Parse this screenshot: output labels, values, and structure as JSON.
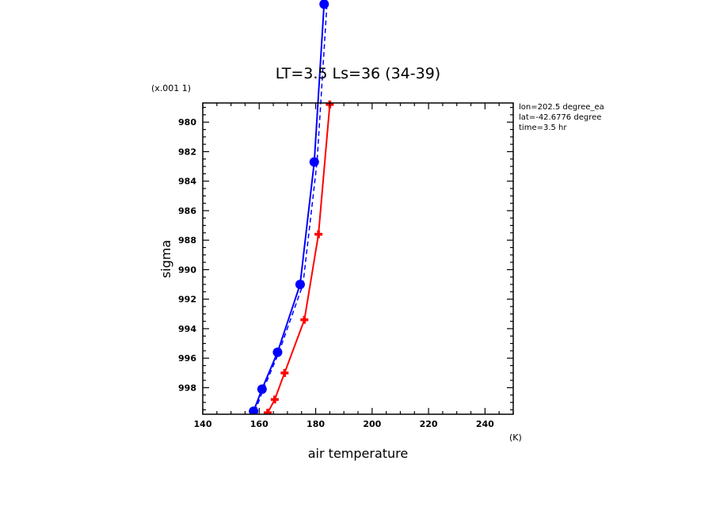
{
  "chart_data": {
    "type": "line",
    "title": "LT=3.5 Ls=36 (34-39)",
    "xlabel": "air temperature",
    "x_unit": "(K)",
    "ylabel": "sigma",
    "y_multiplier_label": "(x.001 1)",
    "xlim": [
      140,
      250
    ],
    "ylim": [
      999.8,
      978.7
    ],
    "x_ticks": [
      140,
      160,
      180,
      200,
      220,
      240
    ],
    "y_ticks": [
      980,
      982,
      984,
      986,
      988,
      990,
      992,
      994,
      996,
      998
    ],
    "info_lines": [
      "lon=202.5 degree_ea",
      "lat=-42.6776 degree",
      "time=3.5 hr"
    ],
    "grid": false,
    "series": [
      {
        "color": "#ff0000",
        "marker": "plus",
        "style": "solid",
        "points": [
          {
            "x": 163.0,
            "y": 999.7
          },
          {
            "x": 165.5,
            "y": 998.8
          },
          {
            "x": 169.0,
            "y": 997.0
          },
          {
            "x": 176.0,
            "y": 993.4
          },
          {
            "x": 181.0,
            "y": 987.6
          },
          {
            "x": 185.0,
            "y": 978.8
          }
        ]
      },
      {
        "color": "#0000ff",
        "marker": "circle",
        "style": "solid",
        "points": [
          {
            "x": 158.0,
            "y": 999.6
          },
          {
            "x": 161.0,
            "y": 998.1
          },
          {
            "x": 166.5,
            "y": 995.6
          },
          {
            "x": 174.5,
            "y": 991.0
          },
          {
            "x": 179.5,
            "y": 982.7
          },
          {
            "x": 183.0,
            "y": 972.0
          }
        ]
      },
      {
        "color": "#0000ff",
        "marker": "circle",
        "style": "dashed",
        "points": [
          {
            "x": 158.5,
            "y": 999.6
          },
          {
            "x": 161.5,
            "y": 998.1
          },
          {
            "x": 167.0,
            "y": 995.6
          },
          {
            "x": 175.5,
            "y": 991.0
          },
          {
            "x": 180.5,
            "y": 982.7
          },
          {
            "x": 184.0,
            "y": 972.0
          }
        ]
      }
    ]
  }
}
